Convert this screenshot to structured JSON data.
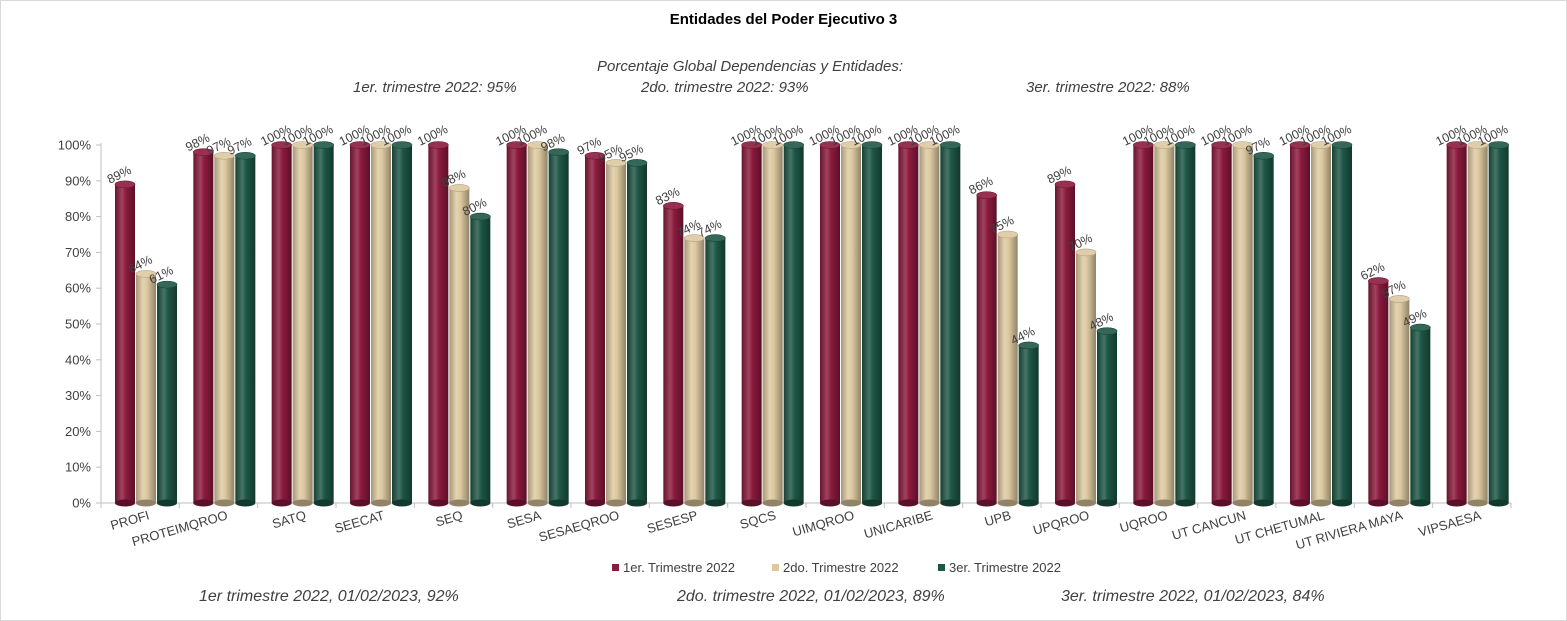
{
  "chart_data": {
    "type": "bar",
    "title": "Entidades del Poder Ejecutivo 3",
    "subtitle": {
      "heading": "Porcentaje Global  Dependencias y Entidades:",
      "q1": "1er. trimestre 2022: 95%",
      "q2": "2do. trimestre 2022: 93%",
      "q3": "3er. trimestre 2022: 88%"
    },
    "footer": {
      "q1": "1er trimestre  2022,  01/02/2023, 92%",
      "q2": "2do. trimestre 2022, 01/02/2023, 89%",
      "q3": "3er. trimestre 2022, 01/02/2023, 84%"
    },
    "categories": [
      "PROFI",
      "PROTEIMQROO",
      "SATQ",
      "SEECAT",
      "SEQ",
      "SESA",
      "SESAEQROO",
      "SESESP",
      "SQCS",
      "UIMQROO",
      "UNICARIBE",
      "UPB",
      "UPQROO",
      "UQROO",
      "UT CANCUN",
      "UT CHETUMAL",
      "UT RIVIERA MAYA",
      "VIPSAESA"
    ],
    "series": [
      {
        "name": "1er. Trimestre 2022",
        "color": "#8b1a3d",
        "values": [
          89,
          98,
          100,
          100,
          100,
          100,
          97,
          83,
          100,
          100,
          100,
          86,
          89,
          100,
          100,
          100,
          62,
          100
        ]
      },
      {
        "name": "2do. Trimestre 2022",
        "color": "#ddc9a0",
        "values": [
          64,
          97,
          100,
          100,
          88,
          100,
          95,
          74,
          100,
          100,
          100,
          75,
          70,
          100,
          100,
          100,
          57,
          100
        ]
      },
      {
        "name": "3er. Trimestre 2022",
        "color": "#1d5645",
        "values": [
          61,
          97,
          100,
          100,
          80,
          98,
          95,
          74,
          100,
          100,
          100,
          44,
          48,
          100,
          97,
          100,
          49,
          100
        ]
      }
    ],
    "ylim": [
      0,
      100
    ],
    "yticks": [
      "0%",
      "10%",
      "20%",
      "30%",
      "40%",
      "50%",
      "60%",
      "70%",
      "80%",
      "90%",
      "100%"
    ],
    "value_suffix": "%",
    "legend_position": "bottom",
    "grid": false
  }
}
